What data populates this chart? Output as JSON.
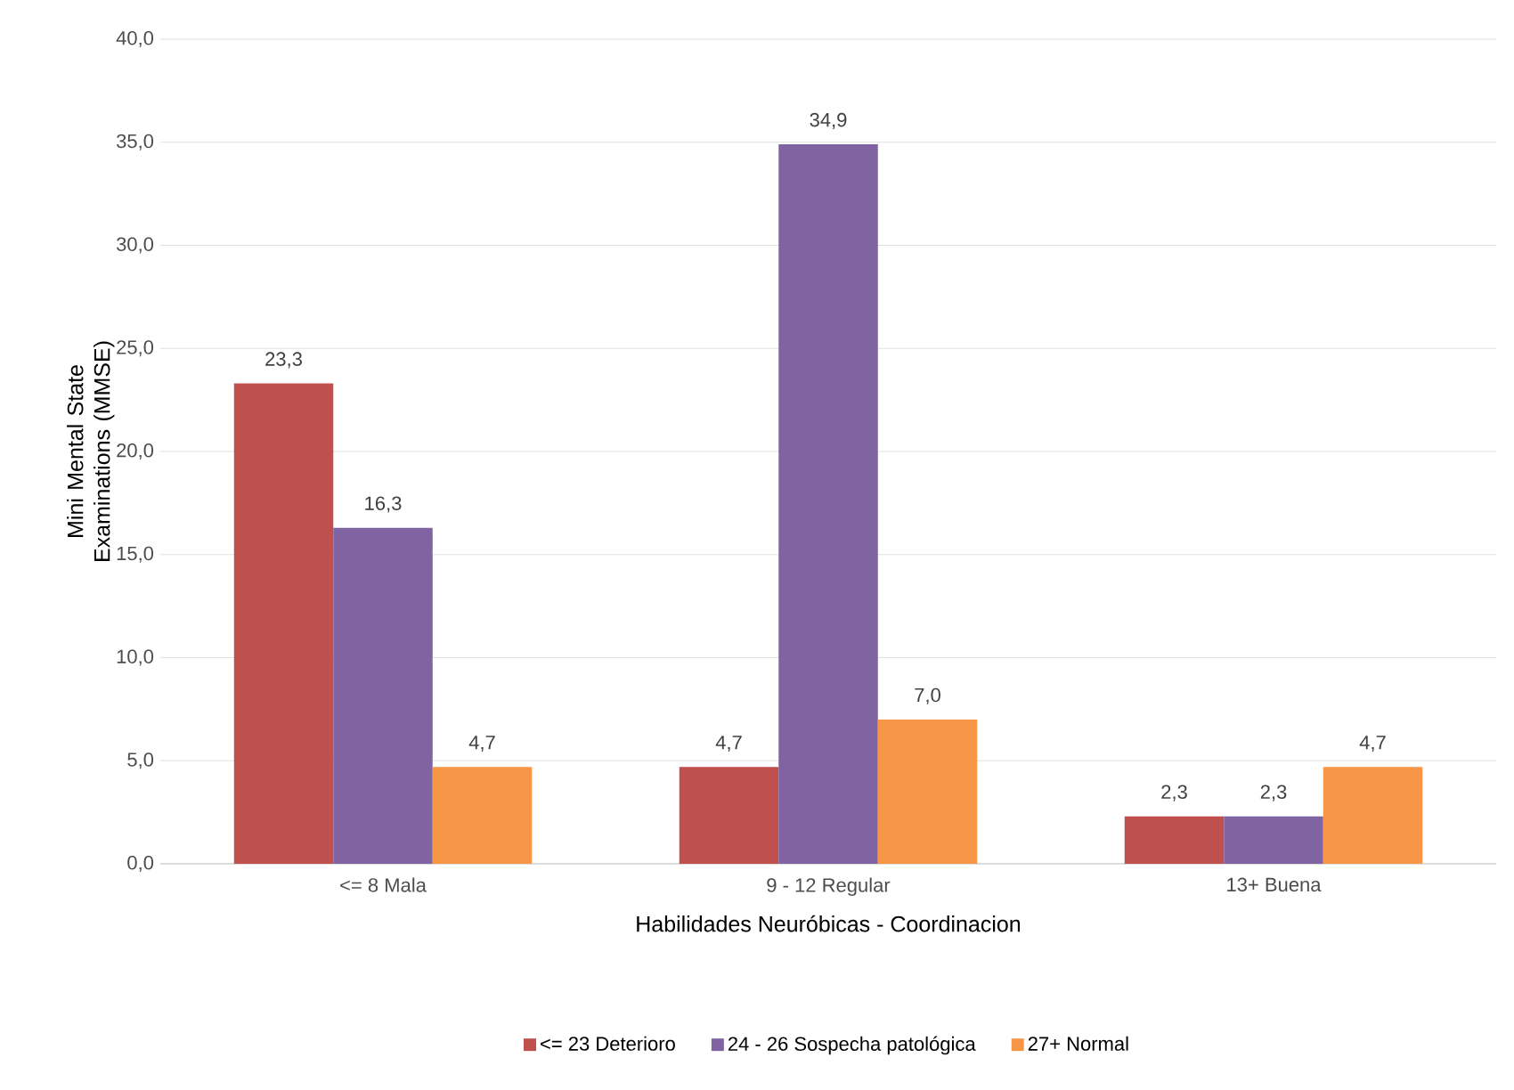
{
  "chart_data": {
    "type": "bar",
    "xlabel": "Habilidades Neuróbicas - Coordinacion",
    "ylabel": "Mini Mental State Examinations (MMSE)",
    "categories": [
      "<= 8 Mala",
      "9 - 12 Regular",
      "13+ Buena"
    ],
    "series": [
      {
        "name": "<= 23  Deterioro",
        "color": "#c0504d",
        "values": [
          23.3,
          4.7,
          2.3
        ],
        "value_labels": [
          "23,3",
          "4,7",
          "2,3"
        ]
      },
      {
        "name": "24 - 26 Sospecha patológica",
        "color": "#8064a2",
        "values": [
          16.3,
          34.9,
          2.3
        ],
        "value_labels": [
          "16,3",
          "34,9",
          "2,3"
        ]
      },
      {
        "name": "27+  Normal",
        "color": "#f79646",
        "values": [
          4.7,
          7.0,
          4.7
        ],
        "value_labels": [
          "4,7",
          "7,0",
          "4,7"
        ]
      }
    ],
    "ylim": [
      0,
      40
    ],
    "yticks": [
      {
        "value": 0,
        "label": "0,0"
      },
      {
        "value": 5,
        "label": "5,0"
      },
      {
        "value": 10,
        "label": "10,0"
      },
      {
        "value": 15,
        "label": "15,0"
      },
      {
        "value": 20,
        "label": "20,0"
      },
      {
        "value": 25,
        "label": "25,0"
      },
      {
        "value": 30,
        "label": "30,0"
      },
      {
        "value": 35,
        "label": "35,0"
      },
      {
        "value": 40,
        "label": "40,0"
      }
    ],
    "grid": "y",
    "legend": "bottom"
  }
}
